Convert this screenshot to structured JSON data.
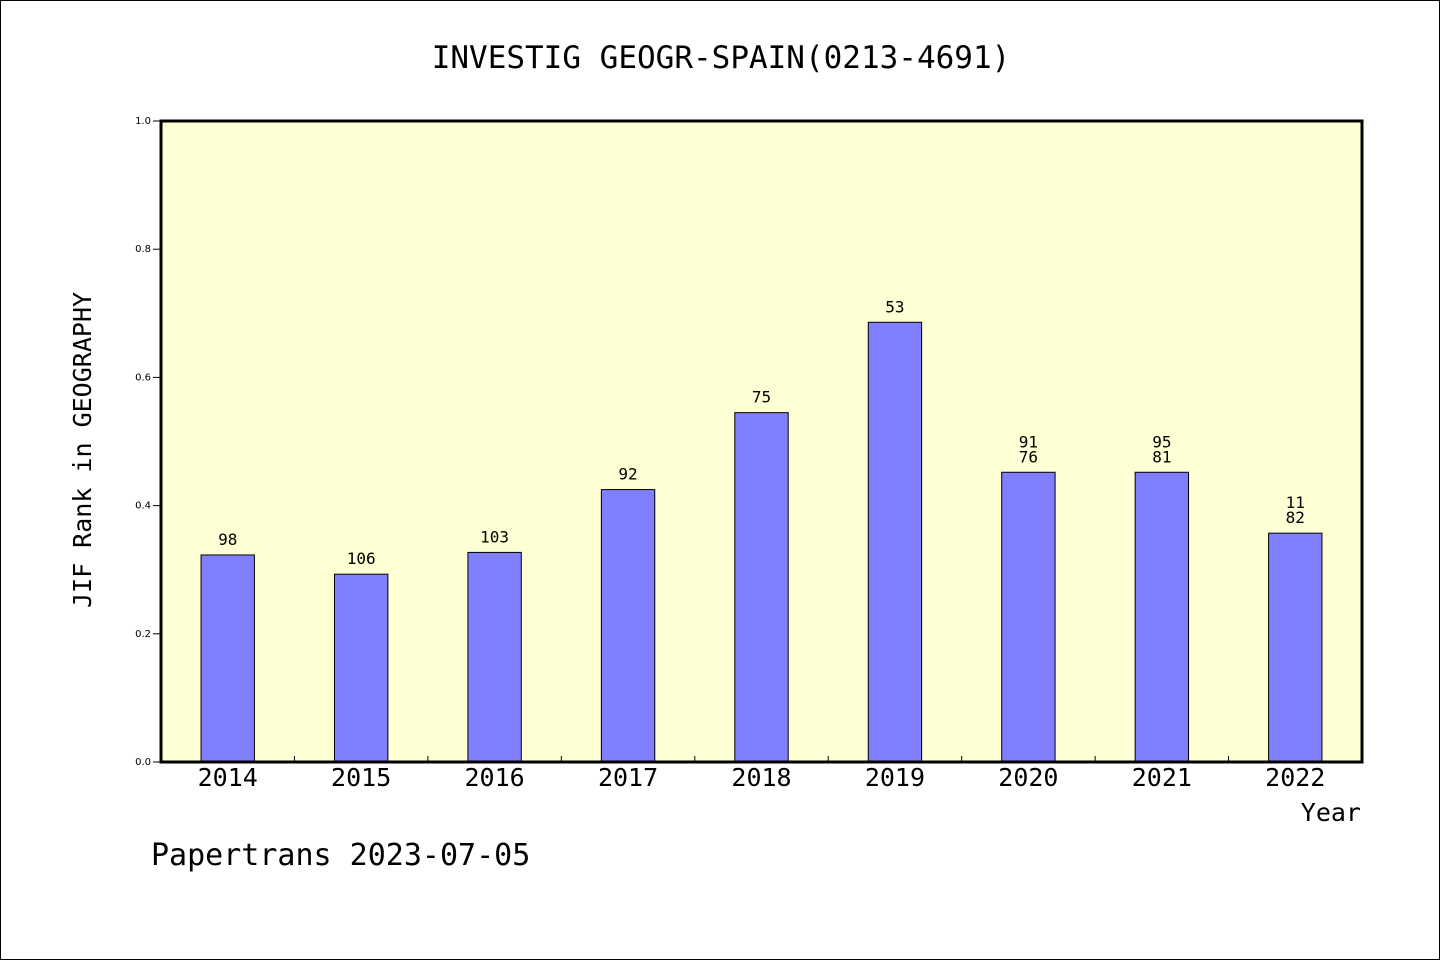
{
  "chart_data": {
    "type": "bar",
    "title": "INVESTIG GEOGR-SPAIN(0213-4691)",
    "xlabel": "Year",
    "ylabel": "JIF Rank in GEOGRAPHY",
    "ylim": [
      0,
      1.0
    ],
    "yticks": [
      "0.0",
      "0.2",
      "0.4",
      "0.6",
      "0.8",
      "1.0"
    ],
    "categories": [
      "2014",
      "2015",
      "2016",
      "2017",
      "2018",
      "2019",
      "2020",
      "2021",
      "2022"
    ],
    "values": [
      0.323,
      0.293,
      0.327,
      0.425,
      0.545,
      0.686,
      0.452,
      0.452,
      0.357
    ],
    "bar_labels": [
      [
        "98"
      ],
      [
        "106"
      ],
      [
        "103"
      ],
      [
        "92"
      ],
      [
        "75"
      ],
      [
        "53"
      ],
      [
        "91",
        "76"
      ],
      [
        "95",
        "81"
      ],
      [
        "11",
        "82"
      ]
    ],
    "grid": false,
    "legend": "none",
    "colors": {
      "plot_background": "#ffffd5",
      "bar_fill": "#8080ff",
      "bar_stroke": "#000000"
    }
  },
  "footer": {
    "text": "Papertrans 2023-07-05"
  }
}
